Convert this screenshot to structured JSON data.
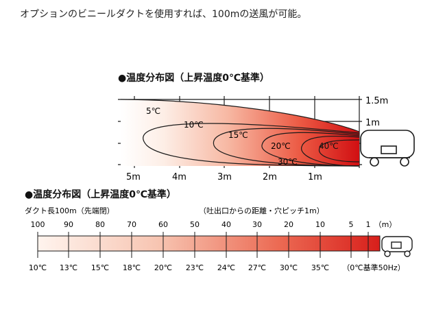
{
  "intro_text": "オプションのビニールダクトを使用すれば、100mの送風が可能。",
  "diagram1": {
    "title": "●温度分布図（上昇温度0℃基準）",
    "height_labels": [
      "1.5m",
      "1m"
    ],
    "distance_labels": [
      "5m",
      "4m",
      "3m",
      "2m",
      "1m"
    ],
    "temp_labels": [
      "5℃",
      "10℃",
      "15℃",
      "20℃",
      "30℃",
      "40℃"
    ]
  },
  "diagram2": {
    "title": "●温度分布図（上昇温度0℃基準）",
    "duct_label": "ダクト長100m（先端閉）",
    "distance_caption": "（吐出口からの距離・穴ピッチ1m）",
    "distance_labels": [
      "100",
      "90",
      "80",
      "70",
      "60",
      "50",
      "40",
      "30",
      "20",
      "10",
      "5",
      "1",
      "（m）"
    ],
    "temp_labels": [
      "10℃",
      "13℃",
      "15℃",
      "18℃",
      "20℃",
      "23℃",
      "24℃",
      "27℃",
      "30℃",
      "35℃",
      "（0℃基準50Hz）"
    ]
  },
  "colors": {
    "hot": "#d71a1a",
    "warm": "#ee6a52",
    "cool": "#fbe6db",
    "line": "#1a1a1a"
  }
}
